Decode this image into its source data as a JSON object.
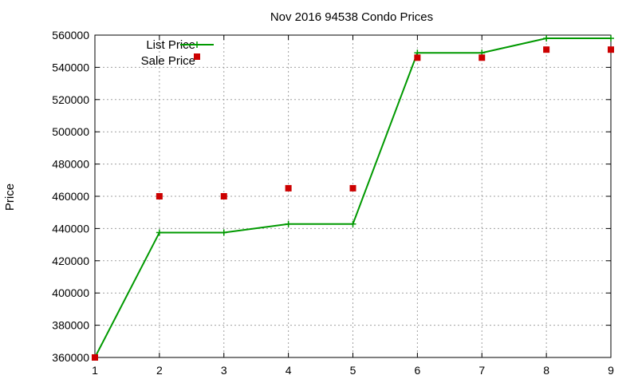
{
  "chart_data": {
    "type": "line",
    "title": "Nov 2016 94538 Condo Prices",
    "xlabel": "",
    "ylabel": "Price",
    "xlim": [
      1,
      9
    ],
    "ylim": [
      360000,
      560000
    ],
    "x_ticks": [
      1,
      2,
      3,
      4,
      5,
      6,
      7,
      8,
      9
    ],
    "y_ticks": [
      360000,
      380000,
      400000,
      420000,
      440000,
      460000,
      480000,
      500000,
      520000,
      540000,
      560000
    ],
    "grid": true,
    "legend_position": "top-left",
    "series": [
      {
        "name": "List Price",
        "style": "line+cross",
        "color": "#009900",
        "x": [
          1,
          2,
          3,
          4,
          5,
          6,
          7,
          8,
          9
        ],
        "y": [
          360000,
          437500,
          437500,
          442800,
          442800,
          549000,
          549000,
          558000,
          558000
        ]
      },
      {
        "name": "Sale Price",
        "style": "square",
        "color": "#cc0000",
        "x": [
          1,
          2,
          3,
          4,
          5,
          6,
          7,
          8,
          9
        ],
        "y": [
          360000,
          460000,
          460000,
          465000,
          465000,
          546000,
          546000,
          551000,
          551000
        ]
      }
    ]
  }
}
